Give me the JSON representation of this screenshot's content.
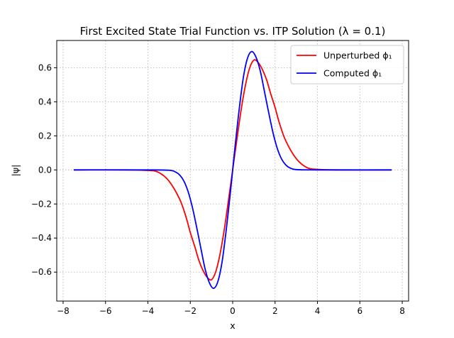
{
  "chart_data": {
    "type": "line",
    "title": "First Excited State Trial Function vs. ITP Solution (λ = 0.1)",
    "xlabel": "x",
    "ylabel": "|ψ|",
    "xlim": [
      -8.3,
      8.3
    ],
    "ylim": [
      -0.77,
      0.76
    ],
    "xticks": [
      -8,
      -6,
      -4,
      -2,
      0,
      2,
      4,
      6,
      8
    ],
    "yticks": [
      -0.6,
      -0.4,
      -0.2,
      0.0,
      0.2,
      0.4,
      0.6
    ],
    "xtick_labels": [
      "−8",
      "−6",
      "−4",
      "−2",
      "0",
      "2",
      "4",
      "6",
      "8"
    ],
    "ytick_labels": [
      "−0.6",
      "−0.4",
      "−0.2",
      "0.0",
      "0.2",
      "0.4",
      "0.6"
    ],
    "grid": true,
    "legend_position": "top-right",
    "series": [
      {
        "name": "Unperturbed ϕ₁",
        "color": "#ff0000",
        "x": [
          -7.5,
          -5,
          -4,
          -3.5,
          -3,
          -2.5,
          -2.2,
          -2,
          -1.8,
          -1.6,
          -1.4,
          -1.2,
          -1,
          -0.8,
          -0.6,
          -0.4,
          -0.2,
          0,
          0.2,
          0.4,
          0.6,
          0.8,
          1,
          1.2,
          1.4,
          1.6,
          1.8,
          2,
          2.2,
          2.5,
          3,
          3.5,
          4,
          5,
          7.5
        ],
        "y": [
          0,
          0,
          -0.003,
          -0.014,
          -0.066,
          -0.172,
          -0.277,
          -0.367,
          -0.445,
          -0.529,
          -0.59,
          -0.631,
          -0.645,
          -0.598,
          -0.496,
          -0.353,
          -0.18,
          0,
          0.18,
          0.353,
          0.496,
          0.598,
          0.645,
          0.631,
          0.59,
          0.529,
          0.445,
          0.367,
          0.277,
          0.172,
          0.066,
          0.014,
          0.003,
          0,
          0
        ]
      },
      {
        "name": "Computed ϕ₁",
        "color": "#0000ff",
        "x": [
          -7.5,
          -4,
          -3,
          -2.7,
          -2.5,
          -2.3,
          -2.1,
          -1.9,
          -1.7,
          -1.5,
          -1.3,
          -1.1,
          -0.9,
          -0.7,
          -0.5,
          -0.3,
          -0.1,
          0,
          0.1,
          0.3,
          0.5,
          0.7,
          0.9,
          1.1,
          1.3,
          1.5,
          1.7,
          1.9,
          2.1,
          2.3,
          2.5,
          2.7,
          3,
          4,
          7.5
        ],
        "y": [
          0,
          0,
          -0.002,
          -0.012,
          -0.03,
          -0.066,
          -0.128,
          -0.22,
          -0.336,
          -0.46,
          -0.582,
          -0.662,
          -0.695,
          -0.656,
          -0.54,
          -0.348,
          -0.123,
          0,
          0.123,
          0.348,
          0.54,
          0.656,
          0.695,
          0.662,
          0.582,
          0.46,
          0.336,
          0.22,
          0.128,
          0.066,
          0.03,
          0.012,
          0.002,
          0,
          0
        ]
      }
    ]
  }
}
